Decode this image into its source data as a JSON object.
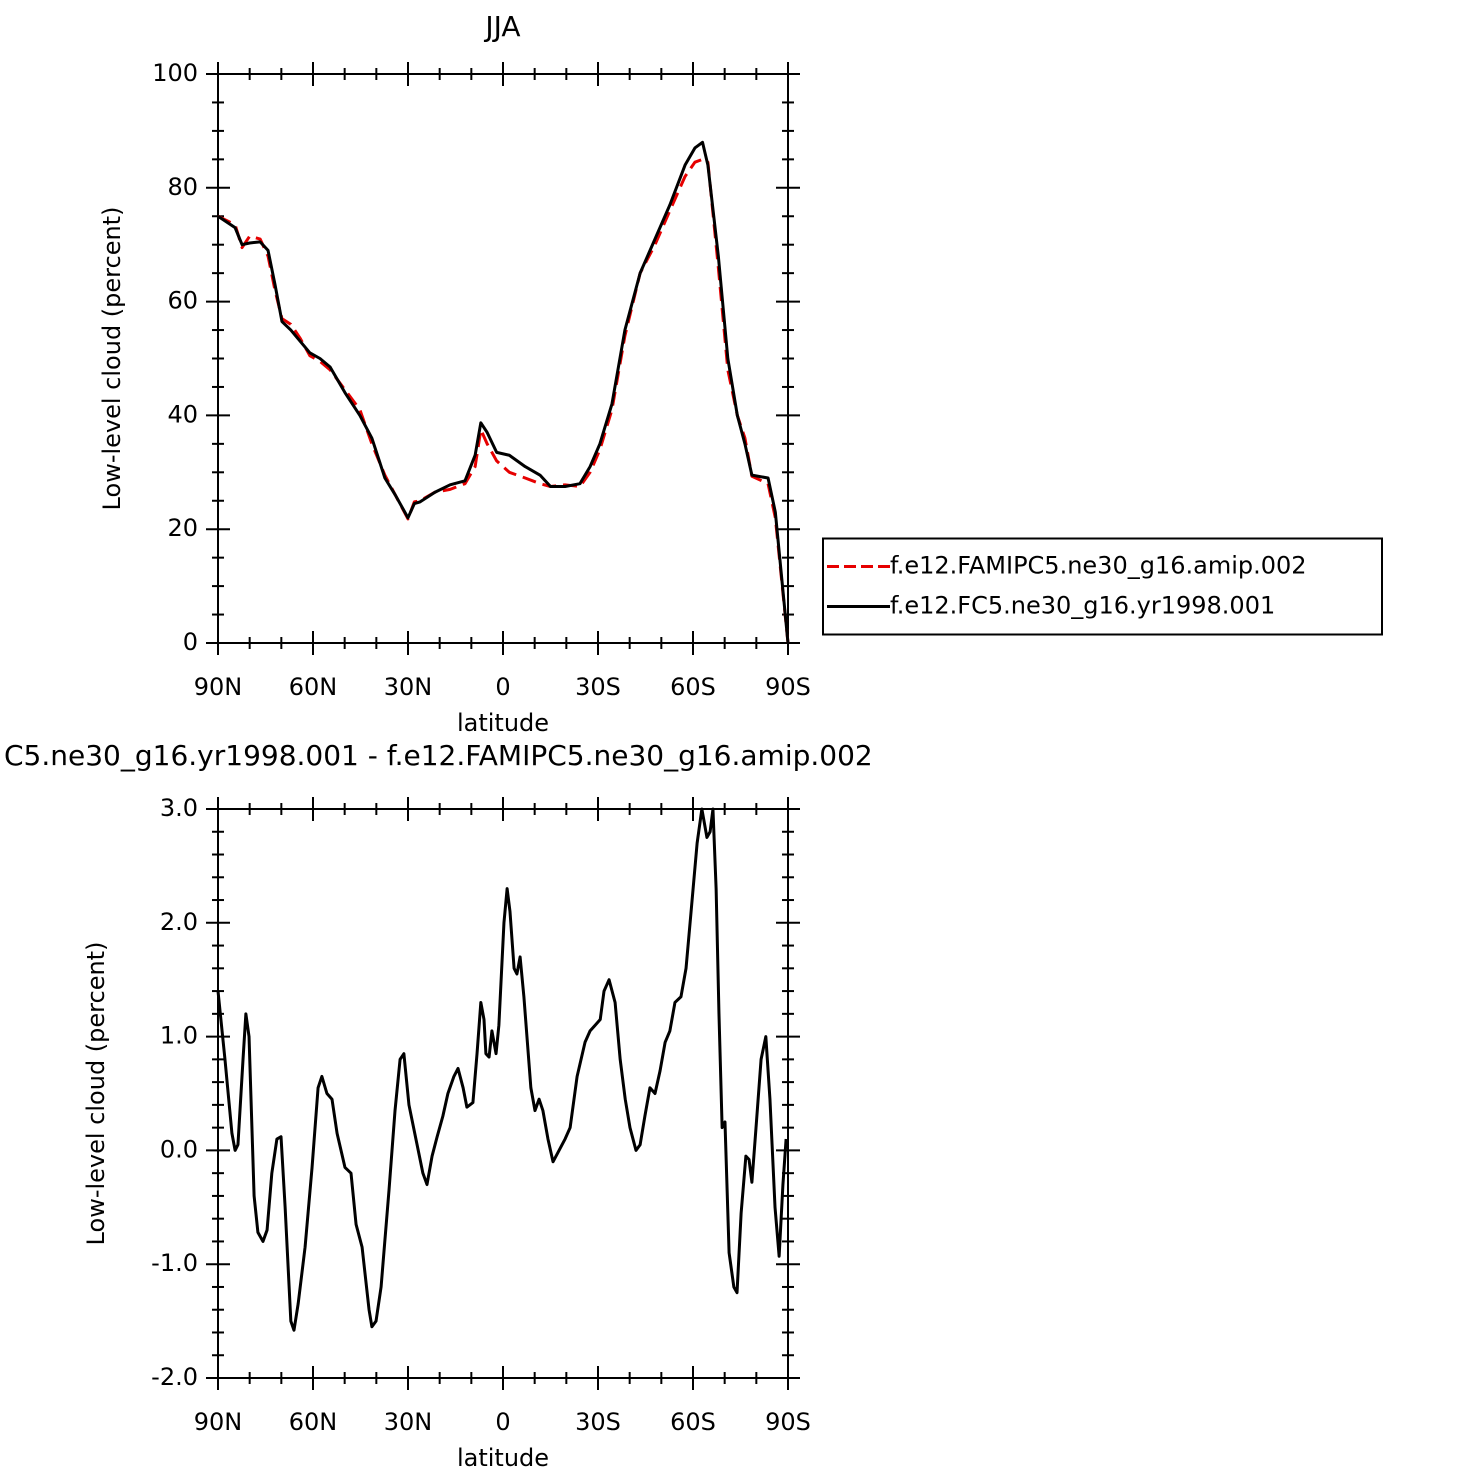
{
  "chart_data": [
    {
      "type": "line",
      "title": "JJA",
      "xlabel": "latitude",
      "ylabel": "Low-level cloud (percent)",
      "xlim": [
        90,
        -90
      ],
      "xticks": [
        {
          "value": 90,
          "label": "90N"
        },
        {
          "value": 60,
          "label": "60N"
        },
        {
          "value": 30,
          "label": "30N"
        },
        0,
        {
          "value": -30,
          "label": "30S"
        },
        {
          "value": -60,
          "label": "60S"
        },
        {
          "value": -90,
          "label": "90S"
        }
      ],
      "ylim": [
        0,
        100
      ],
      "yticks": [
        0,
        20,
        40,
        60,
        80,
        100
      ],
      "legend": "right",
      "x": [
        90,
        84.6,
        82.4,
        80,
        76.7,
        74.2,
        72,
        69.8,
        67,
        64,
        61,
        57.8,
        54.6,
        49.9,
        45.2,
        41.4,
        37.3,
        34,
        30,
        28,
        26.2,
        21.5,
        16.7,
        12,
        8.8,
        7,
        5,
        2,
        -2,
        -7,
        -11.7,
        -15,
        -19.6,
        -24.3,
        -27.5,
        -30.6,
        -34.4,
        -38.5,
        -43.3,
        -48,
        -52.7,
        -57.5,
        -60.6,
        -63,
        -64.7,
        -68,
        -71,
        -74,
        -76.4,
        -78.6,
        -83.7,
        -86,
        -90
      ],
      "series": [
        {
          "name": "f.e12.FAMIPC5.ne30_g16.amip.002",
          "color": "#e60000",
          "linestyle": "dashed",
          "values": [
            75,
            73.5,
            69.5,
            71.5,
            71,
            68,
            62,
            57,
            56,
            53.5,
            50.5,
            49.5,
            48,
            44.5,
            41,
            35,
            29.5,
            26,
            21.8,
            24.8,
            25,
            26.5,
            27,
            28,
            31,
            37.5,
            35,
            32,
            30,
            29,
            28,
            27.5,
            27.8,
            27.5,
            30,
            34,
            41,
            54,
            65,
            70,
            76,
            82,
            84.5,
            85,
            84.5,
            66,
            48,
            40,
            36,
            29.3,
            28,
            22,
            0
          ]
        },
        {
          "name": "f.e12.FC5.ne30_g16.yr1998.001",
          "color": "#000000",
          "linestyle": "solid",
          "values": [
            75,
            73,
            70,
            70.3,
            70.5,
            69,
            63,
            56.5,
            55,
            53,
            51,
            50,
            48.5,
            44,
            40,
            36,
            29,
            26,
            22,
            24.5,
            24.8,
            26.5,
            27.8,
            28.5,
            33,
            38.7,
            37,
            33.5,
            33,
            31,
            29.5,
            27.5,
            27.5,
            28,
            31,
            35,
            42,
            55,
            65,
            71,
            77,
            84,
            87,
            88,
            84,
            68,
            50,
            40,
            35,
            29.5,
            29,
            23,
            0
          ]
        }
      ]
    },
    {
      "type": "line",
      "title": "C5.ne30_g16.yr1998.001 - f.e12.FAMIPC5.ne30_g16.amip.002",
      "xlabel": "latitude",
      "ylabel": "Low-level cloud (percent)",
      "xlim": [
        90,
        -90
      ],
      "xticks": [
        {
          "value": 90,
          "label": "90N"
        },
        {
          "value": 60,
          "label": "60N"
        },
        {
          "value": 30,
          "label": "30N"
        },
        0,
        {
          "value": -30,
          "label": "30S"
        },
        {
          "value": -60,
          "label": "60S"
        },
        {
          "value": -90,
          "label": "90S"
        }
      ],
      "ylim": [
        -2,
        3
      ],
      "yticks": [
        {
          "value": -2,
          "label": "-2.0"
        },
        {
          "value": -1,
          "label": "-1.0"
        },
        {
          "value": 0,
          "label": "0.0"
        },
        {
          "value": 1,
          "label": "1.0"
        },
        {
          "value": 2,
          "label": "2.0"
        },
        {
          "value": 3,
          "label": "3.0"
        }
      ],
      "color": "#000000",
      "x": [
        90,
        87.8,
        85.6,
        84.6,
        83.7,
        82.1,
        81.2,
        80.2,
        78.6,
        77.4,
        75.8,
        74.5,
        73.0,
        71.4,
        70.1,
        68.8,
        67.0,
        66.0,
        64.7,
        62.5,
        60.3,
        58.4,
        57.2,
        55.6,
        54.0,
        52.4,
        49.9,
        48.0,
        46.4,
        44.5,
        42.3,
        41.4,
        40.1,
        38.5,
        36.0,
        34.1,
        32.5,
        31.3,
        29.7,
        27.5,
        25.3,
        24.0,
        22.4,
        20.8,
        19.0,
        17.4,
        15.5,
        14.2,
        12.6,
        11.4,
        9.5,
        8.2,
        7.0,
        6.0,
        5.4,
        4.4,
        3.5,
        2.2,
        1.3,
        -0.3,
        -1.3,
        -2.2,
        -3.5,
        -4.4,
        -5.4,
        -6.6,
        -8.8,
        -10.1,
        -11.4,
        -12.6,
        -14.2,
        -15.8,
        -17.7,
        -19.6,
        -21.2,
        -23.4,
        -25.9,
        -27.5,
        -29.1,
        -30.7,
        -31.9,
        -33.5,
        -35.4,
        -37.0,
        -38.6,
        -40.1,
        -42.0,
        -43.3,
        -44.8,
        -46.4,
        -48.0,
        -49.6,
        -51.2,
        -52.7,
        -54.3,
        -56.2,
        -57.8,
        -59.4,
        -61.3,
        -62.8,
        -64.4,
        -65.4,
        -66.3,
        -67.3,
        -68.2,
        -69.2,
        -70.1,
        -71.4,
        -72.9,
        -73.9,
        -75.2,
        -76.7,
        -77.7,
        -78.6,
        -79.9,
        -81.5,
        -83.0,
        -84.3,
        -85.9,
        -87.2,
        -88.4,
        -89.4
      ],
      "values": [
        1.4,
        0.8,
        0.15,
        0.0,
        0.05,
        0.8,
        1.2,
        1.0,
        -0.4,
        -0.72,
        -0.8,
        -0.7,
        -0.2,
        0.1,
        0.12,
        -0.5,
        -1.5,
        -1.58,
        -1.35,
        -0.85,
        -0.15,
        0.55,
        0.65,
        0.5,
        0.45,
        0.15,
        -0.15,
        -0.2,
        -0.65,
        -0.85,
        -1.4,
        -1.55,
        -1.5,
        -1.2,
        -0.35,
        0.35,
        0.8,
        0.85,
        0.4,
        0.1,
        -0.2,
        -0.3,
        -0.05,
        0.12,
        0.3,
        0.5,
        0.65,
        0.72,
        0.55,
        0.38,
        0.42,
        0.85,
        1.3,
        1.15,
        0.85,
        0.82,
        1.05,
        0.85,
        1.1,
        2.0,
        2.3,
        2.1,
        1.6,
        1.55,
        1.7,
        1.35,
        0.55,
        0.35,
        0.45,
        0.35,
        0.1,
        -0.1,
        0.0,
        0.1,
        0.2,
        0.65,
        0.95,
        1.05,
        1.1,
        1.15,
        1.4,
        1.5,
        1.3,
        0.8,
        0.45,
        0.2,
        0.0,
        0.05,
        0.3,
        0.55,
        0.5,
        0.7,
        0.95,
        1.05,
        1.3,
        1.35,
        1.6,
        2.1,
        2.7,
        3.0,
        2.75,
        2.8,
        3.0,
        2.3,
        1.2,
        0.2,
        0.25,
        -0.9,
        -1.2,
        -1.25,
        -0.55,
        -0.05,
        -0.08,
        -0.28,
        0.2,
        0.8,
        1.0,
        0.45,
        -0.5,
        -0.93,
        -0.3,
        0.1
      ]
    }
  ]
}
